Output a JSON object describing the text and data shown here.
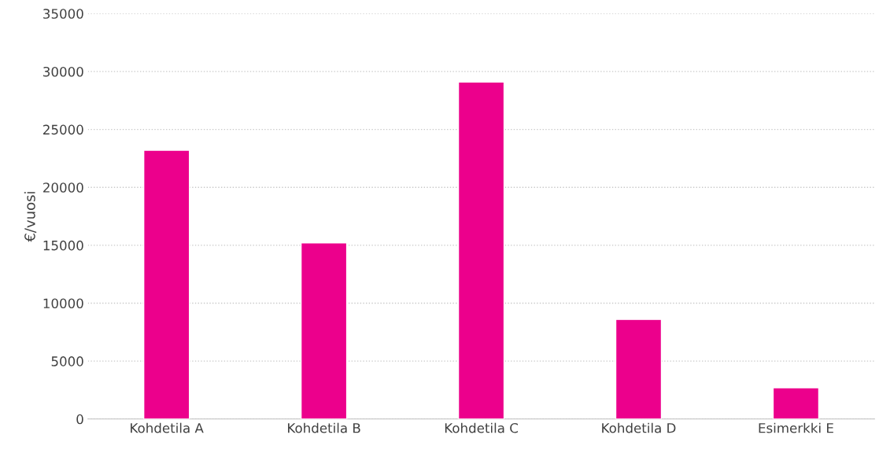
{
  "chart_data": {
    "type": "bar",
    "ylabel": "€/vuosi",
    "categories": [
      "Kohdetila A",
      "Kohdetila B",
      "Kohdetila C",
      "Kohdetila D",
      "Esimerkki E"
    ],
    "values": [
      23200,
      15200,
      29100,
      8600,
      2700
    ],
    "color": "#ec008c",
    "ylim": [
      0,
      35000
    ],
    "yticks": [
      0,
      5000,
      10000,
      15000,
      20000,
      25000,
      30000,
      35000
    ],
    "grid": "y",
    "legend": false
  }
}
